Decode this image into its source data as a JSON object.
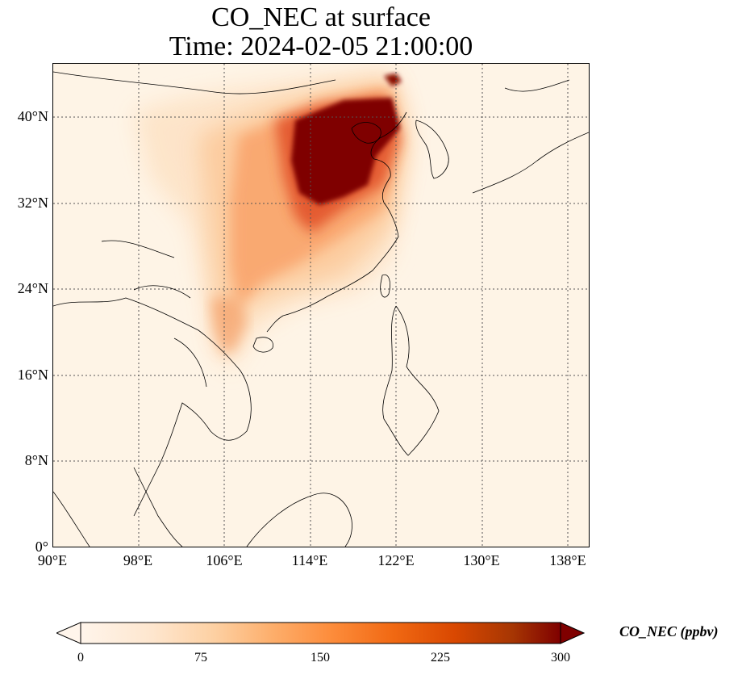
{
  "title": {
    "line1": "CO_NEC at surface",
    "line2": "Time: 2024-02-05 21:00:00"
  },
  "axes": {
    "lat_ticks": [
      "40°N",
      "32°N",
      "24°N",
      "16°N",
      "8°N",
      "0°"
    ],
    "lon_ticks": [
      "90°E",
      "98°E",
      "106°E",
      "114°E",
      "122°E",
      "130°E",
      "138°E"
    ],
    "lat_range": [
      0,
      45
    ],
    "lon_range": [
      90,
      140
    ],
    "gridlines": true
  },
  "colorbar": {
    "title": "CO_NEC (ppbv)",
    "ticks": [
      "0",
      "75",
      "150",
      "225",
      "300"
    ],
    "range": [
      0,
      300
    ],
    "extend": "both",
    "colormap": [
      "#fff5eb",
      "#fee6ce",
      "#fdd0a2",
      "#fdae6b",
      "#fd8d3c",
      "#f16913",
      "#d94801",
      "#a63603",
      "#7f2704"
    ]
  },
  "colors": {
    "background": "#fef4e6",
    "gridline": "#555555",
    "coastline": "#000000",
    "max_plume": "#7f0000"
  }
}
